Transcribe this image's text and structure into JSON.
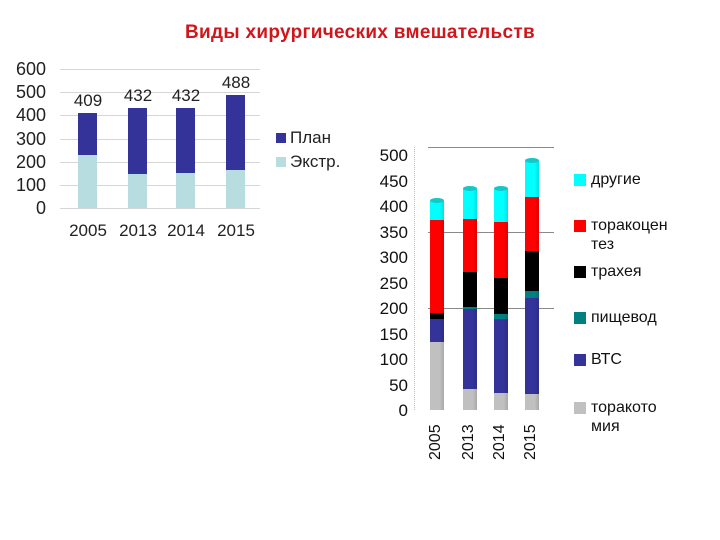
{
  "title": "Виды хирургических вмешательств",
  "chart_data": [
    {
      "type": "bar",
      "stacked": true,
      "title": "",
      "categories": [
        "2005",
        "2013",
        "2014",
        "2015"
      ],
      "series": [
        {
          "name": "Экстр.",
          "color": "#b7dde1",
          "values": [
            228,
            145,
            150,
            165
          ]
        },
        {
          "name": "План",
          "color": "#333399",
          "values": [
            181,
            287,
            282,
            323
          ]
        }
      ],
      "totals": [
        409,
        432,
        432,
        488
      ],
      "data_labels": [
        "409",
        "432",
        "432",
        "488"
      ],
      "yticks": [
        "0",
        "100",
        "200",
        "300",
        "400",
        "500",
        "600"
      ],
      "ylim": [
        0,
        600
      ],
      "grid": true,
      "legend": {
        "position": "right",
        "entries": [
          "План",
          "Экстр."
        ]
      },
      "xlabel": "",
      "ylabel": ""
    },
    {
      "type": "bar",
      "stacked": true,
      "style": "3d-cylinder",
      "title": "",
      "categories": [
        "2005",
        "2013",
        "2014",
        "2015"
      ],
      "series": [
        {
          "name": "торакотомия",
          "color": "#c0c0c0",
          "values": [
            134,
            41,
            33,
            31
          ]
        },
        {
          "name": "ВТС",
          "color": "#333399",
          "values": [
            44,
            157,
            145,
            188
          ]
        },
        {
          "name": "пищевод",
          "color": "#008080",
          "values": [
            0,
            4,
            10,
            15
          ]
        },
        {
          "name": "трахея",
          "color": "#000000",
          "values": [
            12,
            69,
            70,
            78
          ]
        },
        {
          "name": "торакоцентез",
          "color": "#ff0000",
          "values": [
            182,
            103,
            110,
            105
          ]
        },
        {
          "name": "другие",
          "color": "#00ffff",
          "values": [
            38,
            60,
            66,
            71
          ]
        }
      ],
      "totals": [
        410,
        434,
        434,
        488
      ],
      "yticks": [
        "0",
        "50",
        "100",
        "150",
        "200",
        "250",
        "300",
        "350",
        "400",
        "450",
        "500"
      ],
      "ylim": [
        0,
        500
      ],
      "gridlines_at": [
        200,
        350,
        500
      ],
      "legend": {
        "position": "right",
        "entries": [
          "другие",
          "торакоцен тез",
          "трахея",
          "пищевод",
          "ВТС",
          "торакото мия"
        ]
      },
      "xlabel": "",
      "ylabel": ""
    }
  ],
  "left_chart": {
    "yticks": [
      "600",
      "500",
      "400",
      "300",
      "200",
      "100",
      "0"
    ],
    "xticks": [
      "2005",
      "2013",
      "2014",
      "2015"
    ],
    "labels": [
      "409",
      "432",
      "432",
      "488"
    ],
    "legend": [
      {
        "label": "План",
        "color": "#333399"
      },
      {
        "label": "Экстр.",
        "color": "#b7dde1"
      }
    ]
  },
  "right_chart": {
    "yticks": [
      "500",
      "450",
      "400",
      "350",
      "300",
      "250",
      "200",
      "150",
      "100",
      "50",
      "0"
    ],
    "xticks": [
      "2005",
      "2013",
      "2014",
      "2015"
    ],
    "legend": [
      {
        "label": "другие",
        "color": "#00ffff"
      },
      {
        "label": "торакоцентез",
        "color": "#ff0000"
      },
      {
        "label": "трахея",
        "color": "#000000"
      },
      {
        "label": "пищевод",
        "color": "#008080"
      },
      {
        "label": "ВТС",
        "color": "#333399"
      },
      {
        "label": "торакотомия",
        "color": "#c0c0c0"
      }
    ]
  }
}
